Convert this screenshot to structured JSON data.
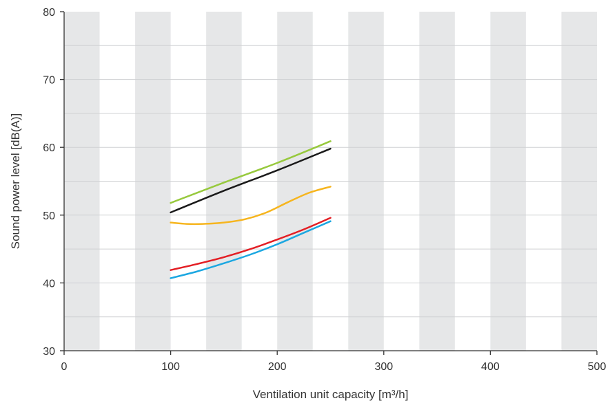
{
  "chart_data": {
    "type": "line",
    "title": "",
    "xlabel": "Ventilation unit capacity [m³/h]",
    "ylabel": "Sound power level [dB(A)]",
    "xlim": [
      0,
      500
    ],
    "ylim": [
      30,
      80
    ],
    "x_ticks": [
      "0",
      "100",
      "200",
      "300",
      "400",
      "500"
    ],
    "y_ticks": [
      "30",
      "40",
      "50",
      "60",
      "70",
      "80"
    ],
    "grid": true,
    "background_bands": true,
    "colors": {
      "band": "#e6e7e8",
      "grid": "#cfd1d3",
      "axis": "#333333"
    },
    "series": [
      {
        "color": "#97c93d",
        "x": [
          100,
          150,
          200,
          250
        ],
        "y": [
          51.8,
          54.8,
          57.7,
          60.9
        ]
      },
      {
        "color": "#1a1a1a",
        "x": [
          100,
          150,
          200,
          250
        ],
        "y": [
          50.4,
          53.6,
          56.6,
          59.8
        ]
      },
      {
        "color": "#f6b51e",
        "x": [
          100,
          115,
          130,
          150,
          170,
          190,
          210,
          230,
          250
        ],
        "y": [
          48.9,
          48.7,
          48.7,
          48.9,
          49.4,
          50.4,
          51.9,
          53.3,
          54.2
        ]
      },
      {
        "color": "#e31e24",
        "x": [
          100,
          125,
          150,
          175,
          200,
          225,
          250
        ],
        "y": [
          41.9,
          42.8,
          43.8,
          45.0,
          46.4,
          47.9,
          49.6
        ]
      },
      {
        "color": "#1ba7e1",
        "x": [
          100,
          125,
          150,
          175,
          200,
          225,
          250
        ],
        "y": [
          40.7,
          41.7,
          42.9,
          44.2,
          45.7,
          47.4,
          49.1
        ]
      }
    ]
  }
}
